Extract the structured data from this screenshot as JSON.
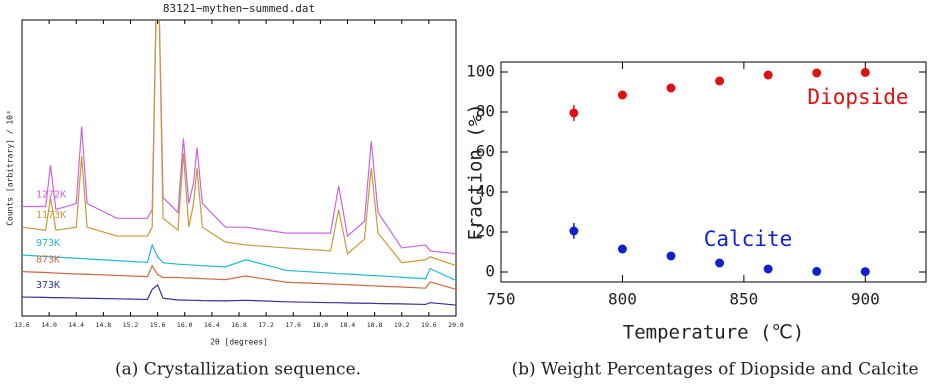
{
  "chart_data": [
    {
      "type": "line",
      "title": "83121−mythen−summed.dat",
      "xlabel": "2θ  [degrees]",
      "ylabel": "Counts [arbitrary] / 10³",
      "caption": "(a)  Crystallization sequence.",
      "x": [
        13.6,
        13.95,
        14.02,
        14.1,
        14.4,
        14.48,
        14.56,
        15.0,
        15.45,
        15.52,
        15.6,
        15.68,
        15.9,
        15.98,
        16.06,
        16.13,
        16.18,
        16.26,
        16.6,
        16.9,
        17.5,
        18.15,
        18.27,
        18.4,
        18.65,
        18.75,
        18.85,
        19.2,
        19.55,
        19.62,
        20.0
      ],
      "series": [
        {
          "name": "1272K",
          "color": "#c866dd",
          "values": [
            37,
            37,
            51,
            36,
            38,
            64,
            38,
            33,
            33,
            36,
            130,
            40,
            35,
            60,
            38,
            45,
            57,
            38,
            30,
            30,
            28,
            28,
            44,
            27,
            32,
            59,
            35,
            23,
            24,
            22,
            21
          ]
        },
        {
          "name": "1173K",
          "color": "#c89a3a",
          "values": [
            30,
            29,
            40,
            29,
            30,
            54,
            30,
            27,
            27,
            30,
            130,
            33,
            29,
            55,
            30,
            38,
            50,
            30,
            25,
            24,
            23,
            22,
            36,
            21,
            26,
            50,
            28,
            18,
            19,
            20,
            17
          ]
        },
        {
          "name": "973K",
          "color": "#22b8cc",
          "values": [
            20.6,
            20.1,
            20,
            19.9,
            19.5,
            19.4,
            19.3,
            18.7,
            18.1,
            24,
            20,
            18,
            17.5,
            17.4,
            17.3,
            17.2,
            17.1,
            17,
            16.6,
            19,
            15.4,
            14.5,
            14.3,
            14.2,
            13.8,
            13.7,
            13.6,
            13.1,
            12.6,
            16,
            12
          ]
        },
        {
          "name": "873K",
          "color": "#cc6a44",
          "values": [
            15,
            14.7,
            14.6,
            14.5,
            14.2,
            14.2,
            14.1,
            13.7,
            13.3,
            17,
            14,
            13,
            13,
            12.9,
            12.8,
            12.8,
            12.7,
            12.6,
            12.3,
            13.5,
            11.4,
            10.8,
            10.7,
            10.6,
            10.3,
            10.2,
            10.1,
            9.8,
            9.4,
            11.5,
            9
          ]
        },
        {
          "name": "373K",
          "color": "#333399",
          "values": [
            6.4,
            6.3,
            6.2,
            6.2,
            6.1,
            6,
            6,
            5.8,
            5.6,
            9,
            10.5,
            6,
            5.4,
            5.4,
            5.3,
            5.3,
            5.3,
            5.2,
            5.1,
            5.3,
            4.8,
            4.5,
            4.5,
            4.4,
            4.3,
            4.3,
            4.2,
            4.1,
            3.9,
            4.5,
            3.7
          ]
        }
      ],
      "xlim": [
        13.6,
        20
      ],
      "ylim": [
        0,
        100
      ],
      "xticks": [
        13.6,
        {
          "value": 14,
          "label": "14.0"
        },
        14.4,
        14.8,
        15.2,
        15.6,
        {
          "value": 16,
          "label": "16.0"
        },
        16.4,
        16.8,
        17.2,
        17.6,
        {
          "value": 18,
          "label": "18.0"
        },
        18.4,
        18.8,
        19.2,
        19.6,
        {
          "value": 20,
          "label": "20.0"
        }
      ]
    },
    {
      "type": "scatter",
      "xlabel": "Temperature (℃)",
      "ylabel": "Fraction (%)",
      "caption": "(b)  Weight Percentages of Diopside and Calcite",
      "x": [
        780,
        800,
        820,
        840,
        860,
        880,
        900
      ],
      "series": [
        {
          "name": "Diopside",
          "color": "#dd1111",
          "values": [
            79.5,
            88.5,
            92,
            95.5,
            98.5,
            99.5,
            99.8
          ],
          "error": [
            4,
            1.5,
            1.5,
            1.5,
            1.5,
            1,
            1
          ]
        },
        {
          "name": "Calcite",
          "color": "#1122cc",
          "values": [
            20.5,
            11.5,
            8,
            4.5,
            1.5,
            0.3,
            0.2
          ],
          "error": [
            4,
            1.5,
            1.5,
            1.5,
            1.5,
            1,
            1
          ]
        }
      ],
      "xlim": [
        750,
        925
      ],
      "ylim": [
        -5,
        105
      ],
      "xticks": [
        750,
        800,
        850,
        900
      ],
      "yticks": [
        0,
        20,
        40,
        60,
        80,
        100
      ]
    }
  ]
}
